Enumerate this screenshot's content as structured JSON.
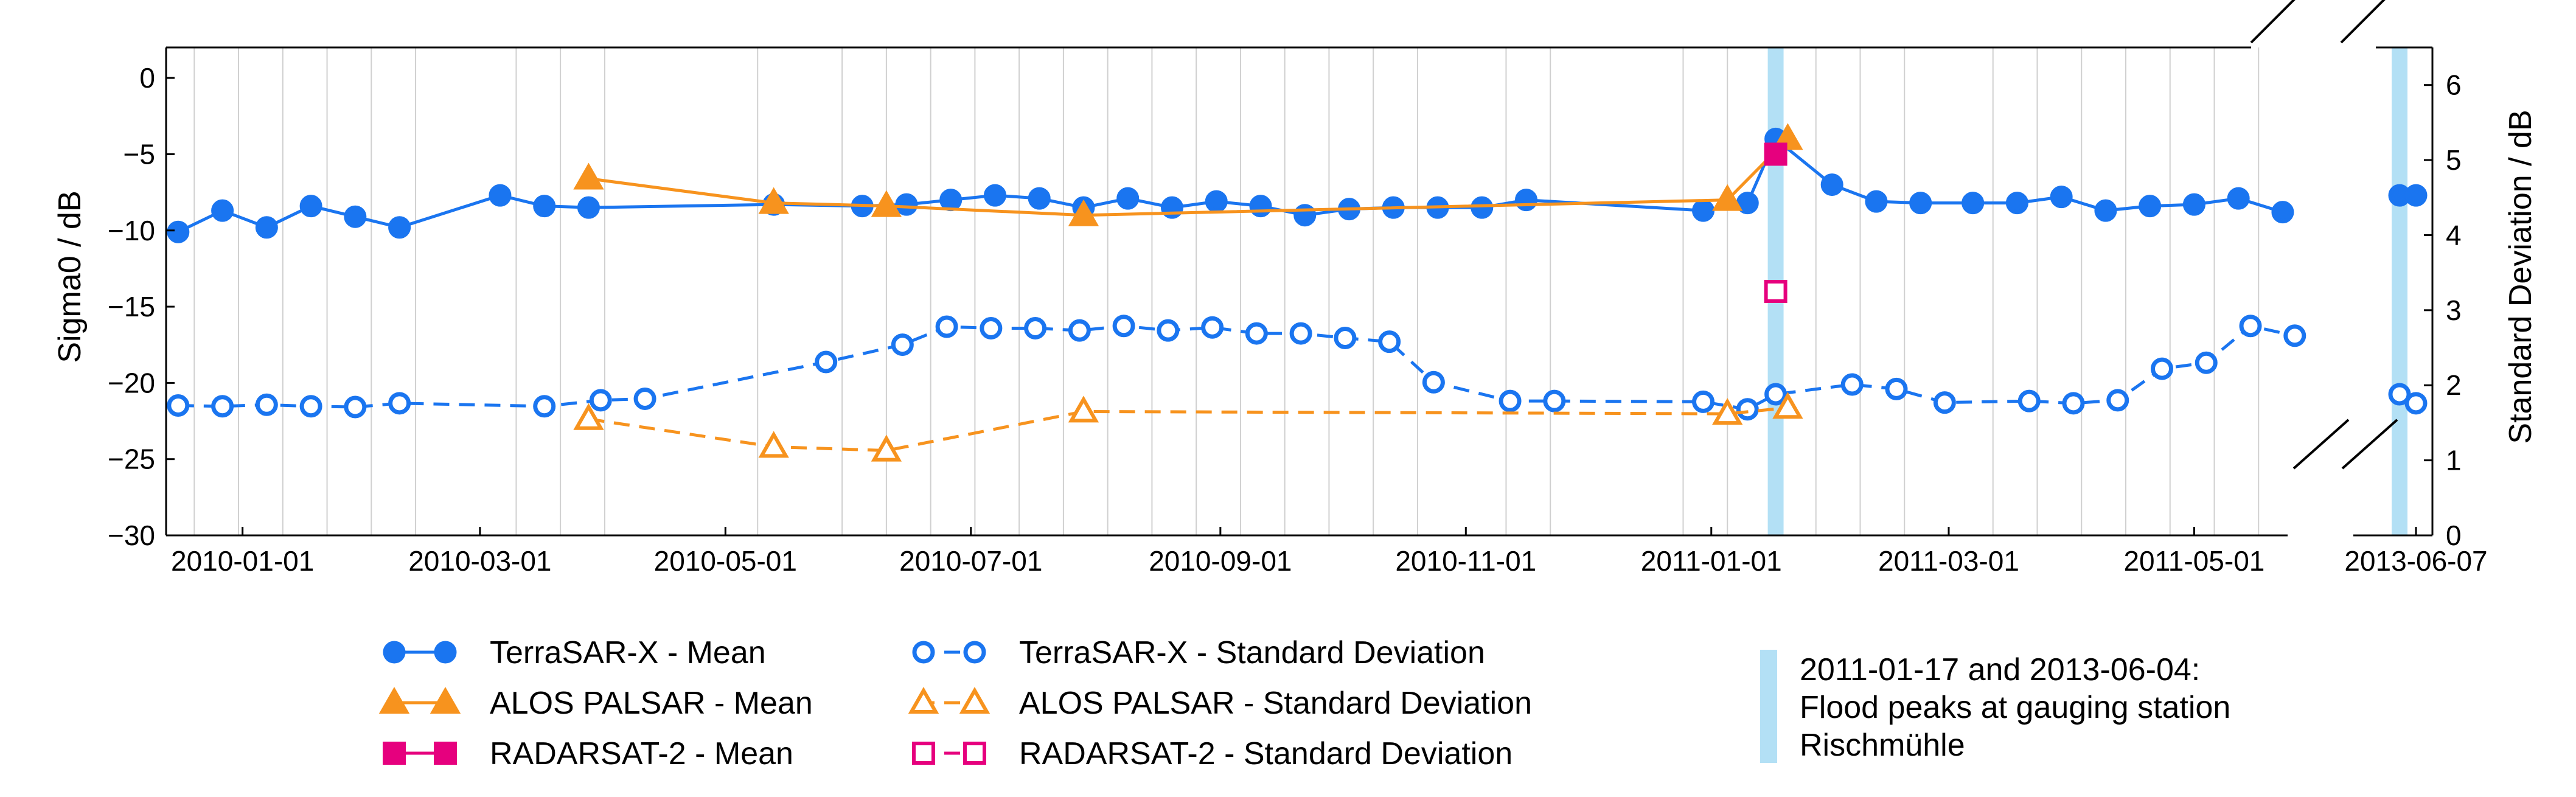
{
  "chart_data": {
    "type": "line",
    "xlabel": "",
    "ylabel": "Sigma0 / dB",
    "ylabel_right": "Standard Deviation / dB",
    "ylim": [
      -30,
      2
    ],
    "ylim_right": [
      0,
      6.5
    ],
    "xlim_main": [
      "2009-12-13",
      "2011-05-28"
    ],
    "xlim_break": [
      "2013-05-31",
      "2013-06-10"
    ],
    "grid": "vertical lines at acquisition dates",
    "y_ticks": [
      0,
      -5,
      -10,
      -15,
      -20,
      -25,
      -30
    ],
    "y_tick_labels": [
      "0",
      "−5",
      "−10",
      "−15",
      "−20",
      "−25",
      "−30"
    ],
    "y_right_ticks": [
      0,
      1,
      2,
      3,
      4,
      5,
      6
    ],
    "y_right_tick_labels": [
      "0",
      "1",
      "2",
      "3",
      "4",
      "5",
      "6"
    ],
    "x_ticks": [
      "2010-01-01",
      "2010-03-01",
      "2010-05-01",
      "2010-07-01",
      "2010-09-01",
      "2010-11-01",
      "2011-01-01",
      "2011-03-01",
      "2011-05-01"
    ],
    "x_break_ticks": [
      "2013-06-07"
    ],
    "grid_dates": [
      "2009-12-20",
      "2009-12-31",
      "2010-01-11",
      "2010-01-22",
      "2010-02-02",
      "2010-02-13",
      "2010-03-10",
      "2010-03-21",
      "2010-04-01",
      "2010-05-09",
      "2010-05-30",
      "2010-06-10",
      "2010-06-21",
      "2010-07-02",
      "2010-07-13",
      "2010-07-24",
      "2010-08-04",
      "2010-08-15",
      "2010-08-26",
      "2010-09-06",
      "2010-09-17",
      "2010-09-28",
      "2010-10-09",
      "2010-10-20",
      "2010-11-11",
      "2010-11-22",
      "2010-12-25",
      "2011-01-05",
      "2011-01-27",
      "2011-02-07",
      "2011-02-18",
      "2011-03-12",
      "2011-03-23",
      "2011-04-03",
      "2011-04-14",
      "2011-04-25",
      "2011-05-06",
      "2011-05-17"
    ],
    "flood_dates": [
      "2011-01-17",
      "2013-06-04"
    ],
    "series": [
      {
        "name": "TerraSAR-X - Mean",
        "axis": "left",
        "color": "#1a75f0",
        "marker": "circle",
        "fill": true,
        "dashed": false,
        "x": [
          "2009-12-16",
          "2009-12-27",
          "2010-01-07",
          "2010-01-18",
          "2010-01-29",
          "2010-02-09",
          "2010-03-06",
          "2010-03-17",
          "2010-03-28",
          "2010-05-13",
          "2010-06-04",
          "2010-06-15",
          "2010-06-26",
          "2010-07-07",
          "2010-07-18",
          "2010-07-29",
          "2010-08-09",
          "2010-08-20",
          "2010-08-31",
          "2010-09-11",
          "2010-09-22",
          "2010-10-03",
          "2010-10-14",
          "2010-10-25",
          "2010-11-05",
          "2010-11-16",
          "2010-12-30",
          "2011-01-10",
          "2011-01-17",
          "2011-01-31",
          "2011-02-11",
          "2011-02-22",
          "2011-03-07",
          "2011-03-18",
          "2011-03-29",
          "2011-04-09",
          "2011-04-20",
          "2011-05-01",
          "2011-05-12",
          "2011-05-23",
          "2013-06-04",
          "2013-06-07"
        ],
        "values": [
          -10.1,
          -8.7,
          -9.8,
          -8.4,
          -9.1,
          -9.8,
          -7.7,
          -8.4,
          -8.5,
          -8.3,
          -8.4,
          -8.3,
          -8.0,
          -7.7,
          -7.9,
          -8.5,
          -7.9,
          -8.5,
          -8.1,
          -8.4,
          -9.0,
          -8.6,
          -8.5,
          -8.5,
          -8.5,
          -8.0,
          -8.7,
          -8.2,
          -4.0,
          -7.0,
          -8.1,
          -8.2,
          -8.2,
          -8.2,
          -7.8,
          -8.7,
          -8.4,
          -8.3,
          -7.9,
          -8.8,
          -7.7,
          -7.7
        ]
      },
      {
        "name": "ALOS PALSAR - Mean",
        "axis": "left",
        "color": "#f7931e",
        "marker": "triangle",
        "fill": true,
        "dashed": false,
        "x": [
          "2010-03-28",
          "2010-05-13",
          "2010-06-10",
          "2010-07-29",
          "2011-01-05",
          "2011-01-20"
        ],
        "values": [
          -6.6,
          -8.2,
          -8.4,
          -9.0,
          -8.0,
          -4.0
        ]
      },
      {
        "name": "RADARSAT-2 - Mean",
        "axis": "left",
        "color": "#e6007e",
        "marker": "square",
        "fill": true,
        "dashed": false,
        "x": [
          "2011-01-17"
        ],
        "values": [
          -5.0
        ]
      },
      {
        "name": "TerraSAR-X - Standard Deviation",
        "axis": "right",
        "color": "#1a75f0",
        "marker": "circle",
        "fill": false,
        "dashed": true,
        "x": [
          "2009-12-16",
          "2009-12-27",
          "2010-01-07",
          "2010-01-18",
          "2010-01-29",
          "2010-02-09",
          "2010-03-17",
          "2010-03-31",
          "2010-04-11",
          "2010-05-26",
          "2010-06-14",
          "2010-06-25",
          "2010-07-06",
          "2010-07-17",
          "2010-07-28",
          "2010-08-08",
          "2010-08-19",
          "2010-08-30",
          "2010-09-10",
          "2010-09-21",
          "2010-10-02",
          "2010-10-13",
          "2010-10-24",
          "2010-11-12",
          "2010-11-23",
          "2010-12-30",
          "2011-01-10",
          "2011-01-17",
          "2011-02-05",
          "2011-02-16",
          "2011-02-28",
          "2011-03-21",
          "2011-04-01",
          "2011-04-12",
          "2011-04-23",
          "2011-05-04",
          "2011-05-15",
          "2011-05-26",
          "2013-06-04",
          "2013-06-07"
        ],
        "values": [
          1.73,
          1.72,
          1.74,
          1.72,
          1.71,
          1.76,
          1.72,
          1.8,
          1.82,
          2.31,
          2.54,
          2.78,
          2.76,
          2.76,
          2.73,
          2.79,
          2.73,
          2.77,
          2.69,
          2.69,
          2.63,
          2.58,
          2.04,
          1.79,
          1.79,
          1.78,
          1.68,
          1.88,
          2.01,
          1.95,
          1.77,
          1.79,
          1.76,
          1.8,
          2.22,
          2.3,
          2.79,
          2.66,
          1.88,
          1.76
        ]
      },
      {
        "name": "ALOS PALSAR - Standard Deviation",
        "axis": "right",
        "color": "#f7931e",
        "marker": "triangle",
        "fill": false,
        "dashed": true,
        "x": [
          "2010-03-28",
          "2010-05-13",
          "2010-06-10",
          "2010-07-29",
          "2011-01-05",
          "2011-01-20"
        ],
        "values": [
          1.55,
          1.18,
          1.13,
          1.65,
          1.62,
          1.7
        ]
      },
      {
        "name": "RADARSAT-2 - Standard Deviation",
        "axis": "right",
        "color": "#e6007e",
        "marker": "square",
        "fill": false,
        "dashed": true,
        "x": [
          "2011-01-17"
        ],
        "values": [
          3.25
        ]
      }
    ],
    "legend": {
      "position": "bottom",
      "entries": [
        "TerraSAR-X - Mean",
        "ALOS PALSAR - Mean",
        "RADARSAT-2 - Mean",
        "TerraSAR-X - Standard Deviation",
        "ALOS PALSAR - Standard Deviation",
        "RADARSAT-2 - Standard Deviation"
      ],
      "flood_note_lines": [
        "2011-01-17 and 2013-06-04:",
        "Flood peaks at gauging station",
        "Rischmühle"
      ]
    },
    "colors": {
      "terrasar": "#1a75f0",
      "alos": "#f7931e",
      "radarsat": "#e6007e",
      "flood_band": "#b3e0f5",
      "grid": "#d0d0d0"
    }
  }
}
